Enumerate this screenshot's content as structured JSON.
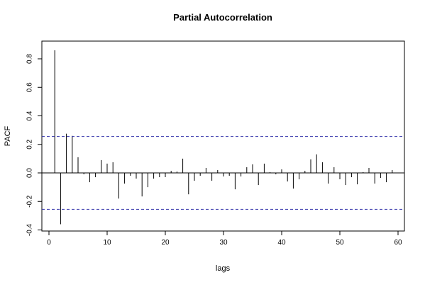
{
  "chart_data": {
    "type": "bar",
    "title": "Partial Autocorrelation",
    "xlabel": "lags",
    "ylabel": "PACF",
    "xlim": [
      0,
      60
    ],
    "ylim": [
      -0.4,
      0.9
    ],
    "x_ticks": [
      0,
      10,
      20,
      30,
      40,
      50,
      60
    ],
    "y_ticks": [
      -0.4,
      -0.2,
      0.0,
      0.2,
      0.4,
      0.6,
      0.8
    ],
    "x_tick_labels": [
      "0",
      "10",
      "20",
      "30",
      "40",
      "50",
      "60"
    ],
    "y_tick_labels": [
      "-0.4",
      "-0.2",
      "0.0",
      "0.2",
      "0.4",
      "0.6",
      "0.8"
    ],
    "confidence_bounds": [
      0.255,
      -0.255
    ],
    "bound_color": "#3333aa",
    "grid": false,
    "lags": [
      1,
      2,
      3,
      4,
      5,
      6,
      7,
      8,
      9,
      10,
      11,
      12,
      13,
      14,
      15,
      16,
      17,
      18,
      19,
      20,
      21,
      22,
      23,
      24,
      25,
      26,
      27,
      28,
      29,
      30,
      31,
      32,
      33,
      34,
      35,
      36,
      37,
      38,
      39,
      40,
      41,
      42,
      43,
      44,
      45,
      46,
      47,
      48,
      49,
      50,
      51,
      52,
      53,
      54,
      55,
      56,
      57,
      58,
      59
    ],
    "values": [
      0.86,
      -0.36,
      0.275,
      0.26,
      0.11,
      -0.01,
      -0.065,
      -0.03,
      0.09,
      0.065,
      0.075,
      -0.18,
      -0.075,
      -0.02,
      -0.04,
      -0.165,
      -0.1,
      -0.04,
      -0.03,
      -0.03,
      0.015,
      0.01,
      0.1,
      -0.15,
      -0.055,
      -0.02,
      0.035,
      -0.055,
      0.02,
      -0.025,
      -0.02,
      -0.115,
      -0.025,
      0.04,
      0.06,
      -0.085,
      0.065,
      0.005,
      -0.01,
      0.025,
      -0.06,
      -0.11,
      -0.045,
      0.015,
      0.095,
      0.13,
      0.075,
      -0.075,
      0.04,
      -0.045,
      -0.085,
      -0.03,
      -0.08,
      0.005,
      0.035,
      -0.075,
      -0.035,
      -0.065,
      0.02
    ]
  }
}
